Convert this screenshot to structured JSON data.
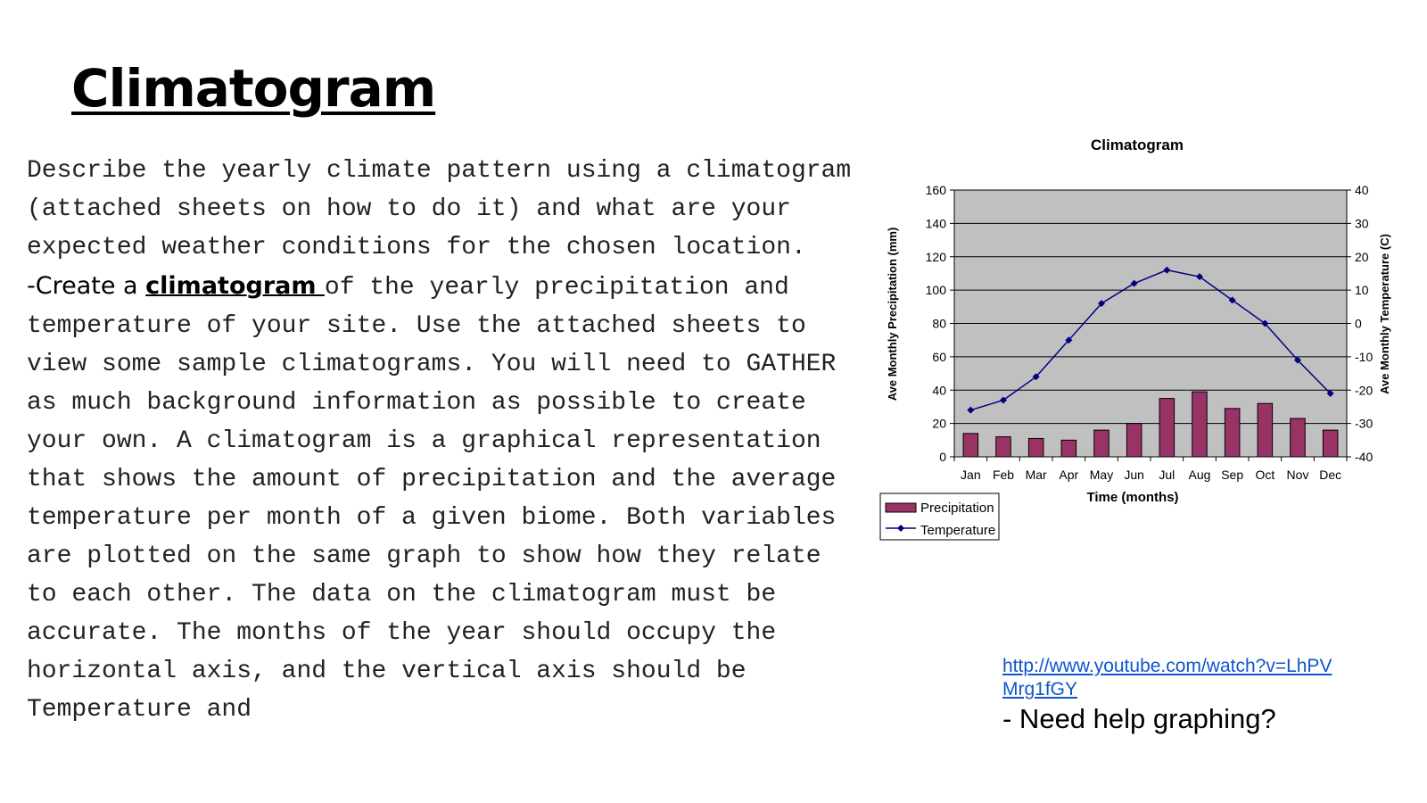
{
  "slide": {
    "title": "Climatogram",
    "para1": "Describe the yearly climate pattern using a climatogram (attached sheets on how to do it) and what are your expected weather conditions for the chosen location.",
    "bullet_lead": "-Create a ",
    "bullet_keyword": "climatogram ",
    "para2": "of the yearly precipitation and temperature of your site. Use the attached sheets to view some sample climatograms. You will need to GATHER as much background information as possible to create your own. A climatogram is a graphical representation that shows the amount of precipitation and the average temperature per month of a given biome. Both variables are plotted on the same graph to show how they relate to each other. The data on the climatogram must be accurate. The months of the year should occupy the horizontal axis, and the vertical axis should be Temperature and",
    "link_text": "http://www.youtube.com/watch?v=LhPVMrg1fGY",
    "help_text": "- Need help graphing?"
  },
  "chart_data": {
    "type": "bar",
    "title": "Climatogram",
    "categories": [
      "Jan",
      "Feb",
      "Mar",
      "Apr",
      "May",
      "Jun",
      "Jul",
      "Aug",
      "Sep",
      "Oct",
      "Nov",
      "Dec"
    ],
    "series": [
      {
        "name": "Precipitation",
        "type": "bar",
        "axis": "left",
        "color": "#993366",
        "values": [
          14,
          12,
          11,
          10,
          16,
          20,
          35,
          39,
          29,
          32,
          23,
          16
        ]
      },
      {
        "name": "Temperature",
        "type": "line",
        "axis": "right",
        "color": "#000080",
        "values": [
          -26,
          -23,
          -16,
          -5,
          6,
          12,
          16,
          14,
          7,
          0,
          -11,
          -21
        ]
      }
    ],
    "xlabel": "Time (months)",
    "ylabel": "Ave Monthly Precipitation (mm)",
    "y2label": "Ave Monthly Temperature (C)",
    "ylim": [
      0,
      160
    ],
    "y2lim": [
      -40,
      40
    ],
    "yticks": [
      0,
      20,
      40,
      60,
      80,
      100,
      120,
      140,
      160
    ],
    "y2ticks": [
      -40,
      -30,
      -20,
      -10,
      0,
      10,
      20,
      30,
      40
    ],
    "grid": true,
    "legend": "bottom-left",
    "plot_background": "#c0c0c0"
  }
}
